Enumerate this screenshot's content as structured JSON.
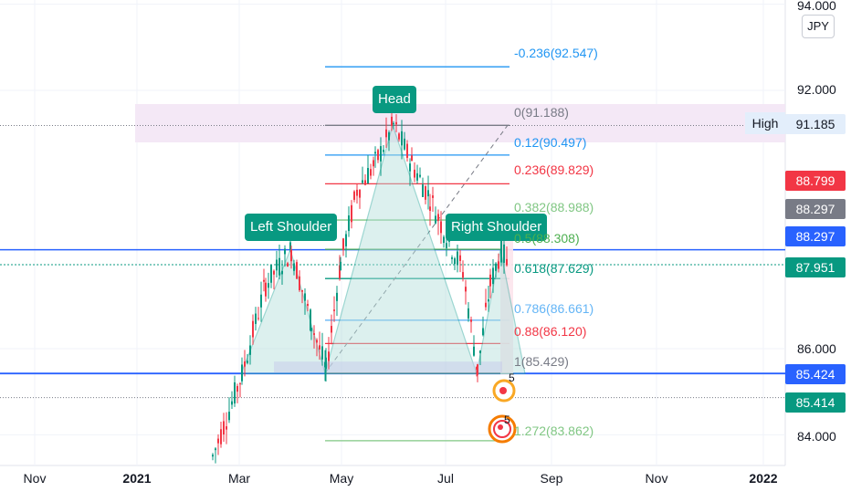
{
  "chart_data": {
    "type": "candlestick",
    "currency": "JPY",
    "y_range": [
      83.5,
      94.0
    ],
    "y_ticks": [
      "94.000",
      "92.000",
      "86.000",
      "84.000"
    ],
    "x_ticks": [
      {
        "label": "Nov",
        "bold": false
      },
      {
        "label": "2021",
        "bold": true
      },
      {
        "label": "Mar",
        "bold": false
      },
      {
        "label": "May",
        "bold": false
      },
      {
        "label": "Jul",
        "bold": false
      },
      {
        "label": "Sep",
        "bold": false
      },
      {
        "label": "Nov",
        "bold": false
      },
      {
        "label": "2022",
        "bold": true
      }
    ],
    "high_label": "High",
    "price_tags": [
      {
        "text": "91.185",
        "value": 91.185,
        "color": "#e3eefb",
        "text_color": "#131722"
      },
      {
        "text": "88.799",
        "value": 88.799,
        "color": "#f23645",
        "text_color": "#ffffff"
      },
      {
        "text": "88.297",
        "value": 88.297,
        "color": "#787b86",
        "text_color": "#ffffff"
      },
      {
        "text": "88.297",
        "value": 88.297,
        "color": "#2962ff",
        "text_color": "#ffffff"
      },
      {
        "text": "87.951",
        "value": 87.951,
        "color": "#089981",
        "text_color": "#ffffff"
      },
      {
        "text": "85.424",
        "value": 85.424,
        "color": "#2962ff",
        "text_color": "#ffffff"
      },
      {
        "text": "85.414",
        "value": 85.414,
        "color": "#089981",
        "text_color": "#ffffff"
      }
    ],
    "pattern_labels": {
      "left": "Left Shoulder",
      "head": "Head",
      "right": "Right Shoulder"
    },
    "fib_levels": [
      {
        "label": "-0.236(92.547)",
        "value": 92.547,
        "color": "#2196f3"
      },
      {
        "label": "0(91.188)",
        "value": 91.188,
        "color": "#787b86"
      },
      {
        "label": "0.12(90.497)",
        "value": 90.497,
        "color": "#2196f3"
      },
      {
        "label": "0.236(89.829)",
        "value": 89.829,
        "color": "#f23645"
      },
      {
        "label": "0.382(88.988)",
        "value": 88.988,
        "color": "#81c784"
      },
      {
        "label": "0.5(88.308)",
        "value": 88.308,
        "color": "#4caf50"
      },
      {
        "label": "0.618(87.629)",
        "value": 87.629,
        "color": "#089981"
      },
      {
        "label": "0.786(86.661)",
        "value": 86.661,
        "color": "#64b5f6"
      },
      {
        "label": "0.88(86.120)",
        "value": 86.12,
        "color": "#f23645"
      },
      {
        "label": "1(85.429)",
        "value": 85.429,
        "color": "#787b86"
      },
      {
        "label": "1.272(83.862)",
        "value": 83.862,
        "color": "#81c784"
      }
    ],
    "event_badges": [
      "5",
      "5"
    ]
  }
}
